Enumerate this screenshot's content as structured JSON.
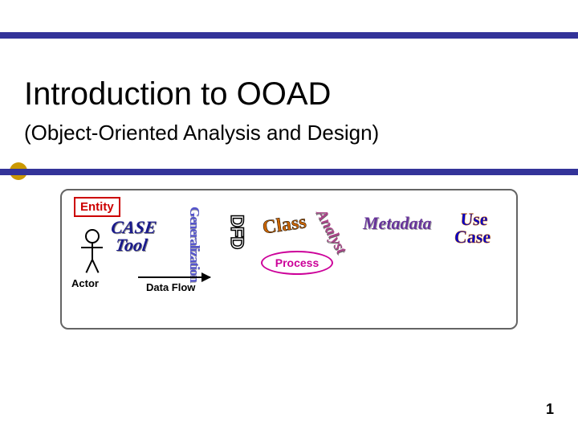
{
  "slide": {
    "title": "Introduction to OOAD",
    "subtitle": "(Object-Oriented Analysis and Design)",
    "page_number": "1",
    "title_fontsize": 40,
    "subtitle_fontsize": 26,
    "accent_bar_color": "#333399",
    "bullet_color": "#cc9900",
    "background_color": "#ffffff"
  },
  "content_box": {
    "border_color": "#646464",
    "border_radius": 10,
    "entity": {
      "label": "Entity",
      "color": "#cc0000",
      "border_color": "#cc0000"
    },
    "case_tool": {
      "line1": "CASE",
      "line2": "Tool",
      "color": "#1a1a8c",
      "fontsize": 22
    },
    "generalization": {
      "label": "Generalization",
      "color": "#5555cc",
      "fontsize": 17,
      "orientation": "vertical"
    },
    "dfd": {
      "label": "DFD",
      "fill": "#ffffff",
      "stroke": "#000000",
      "fontsize": 22,
      "orientation": "vertical"
    },
    "class_word": {
      "label": "Class",
      "color": "#cc6600",
      "fontsize": 24,
      "rotation": -8
    },
    "analyst": {
      "label": "Analyst",
      "color": "#aa4488",
      "fontsize": 19,
      "rotation": 62
    },
    "metadata": {
      "label": "Metadata",
      "color": "#663399",
      "fontsize": 22
    },
    "use_case": {
      "line1": "Use",
      "line2": "Case",
      "color": "#0000cc",
      "stroke": "#cc6600",
      "fontsize": 22
    },
    "process": {
      "label": "Process",
      "color": "#cc0099",
      "shape": "ellipse"
    },
    "actor": {
      "label": "Actor",
      "color": "#000000"
    },
    "data_flow": {
      "label": "Data Flow",
      "color": "#000000",
      "arrow_length": 90
    }
  }
}
